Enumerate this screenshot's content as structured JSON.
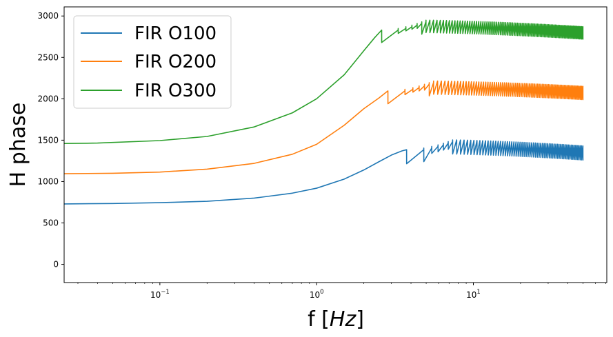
{
  "chart_data": {
    "type": "line",
    "title": "",
    "xlabel_prefix": "f [",
    "xlabel_unit": "Hz",
    "xlabel_suffix": "]",
    "ylabel": "H phase",
    "xscale": "log",
    "xlim": [
      0.0245,
      71
    ],
    "ylim": [
      -220,
      3110
    ],
    "yticks": [
      0,
      500,
      1000,
      1500,
      2000,
      2500,
      3000
    ],
    "ytick_labels": [
      "0",
      "500",
      "1000",
      "1500",
      "2000",
      "2500",
      "3000"
    ],
    "xticks": [
      {
        "value": 0.1,
        "base": "10",
        "exp": "−1"
      },
      {
        "value": 1,
        "base": "10",
        "exp": "0"
      },
      {
        "value": 10,
        "base": "10",
        "exp": "1"
      }
    ],
    "legend_position": "upper-left",
    "series": [
      {
        "name": "FIR O100",
        "color": "#1f77b4",
        "x": [
          0.0245,
          0.05,
          0.1,
          0.2,
          0.4,
          0.7,
          1.0,
          1.5,
          2.0,
          2.5,
          3.0,
          3.5,
          3.75
        ],
        "y": [
          730,
          735,
          745,
          762,
          800,
          860,
          920,
          1030,
          1140,
          1240,
          1320,
          1370,
          1385
        ],
        "sawtooth": {
          "start": 3.75,
          "end": 50,
          "drop": 170,
          "first_peak": 1385,
          "peak_rise": 1510,
          "decay_to": 1430,
          "osc_count": 70,
          "first_dips": [
            1215,
            1240,
            1340,
            1360,
            1380,
            1390
          ]
        }
      },
      {
        "name": "FIR O200",
        "color": "#ff7f0e",
        "x": [
          0.0245,
          0.05,
          0.1,
          0.2,
          0.4,
          0.7,
          1.0,
          1.5,
          2.0,
          2.5,
          2.85
        ],
        "y": [
          1095,
          1100,
          1115,
          1150,
          1220,
          1330,
          1450,
          1680,
          1880,
          2010,
          2095
        ],
        "sawtooth": {
          "start": 2.85,
          "end": 50,
          "drop": 160,
          "first_peak": 2095,
          "peak_rise": 2220,
          "decay_to": 2150,
          "osc_count": 85,
          "first_dips": [
            1940,
            2050,
            2080,
            2095,
            2105
          ]
        }
      },
      {
        "name": "FIR O300",
        "color": "#2ca02c",
        "x": [
          0.0245,
          0.04,
          0.1,
          0.2,
          0.4,
          0.7,
          1.0,
          1.5,
          2.0,
          2.35,
          2.6
        ],
        "y": [
          1460,
          1465,
          1495,
          1545,
          1660,
          1830,
          2000,
          2290,
          2580,
          2740,
          2830
        ],
        "sawtooth": {
          "start": 2.6,
          "end": 50,
          "drop": 150,
          "first_peak": 2830,
          "peak_rise": 2955,
          "decay_to": 2870,
          "osc_count": 95,
          "first_dips": [
            2680,
            2790,
            2820,
            2840,
            2850
          ]
        }
      }
    ]
  }
}
